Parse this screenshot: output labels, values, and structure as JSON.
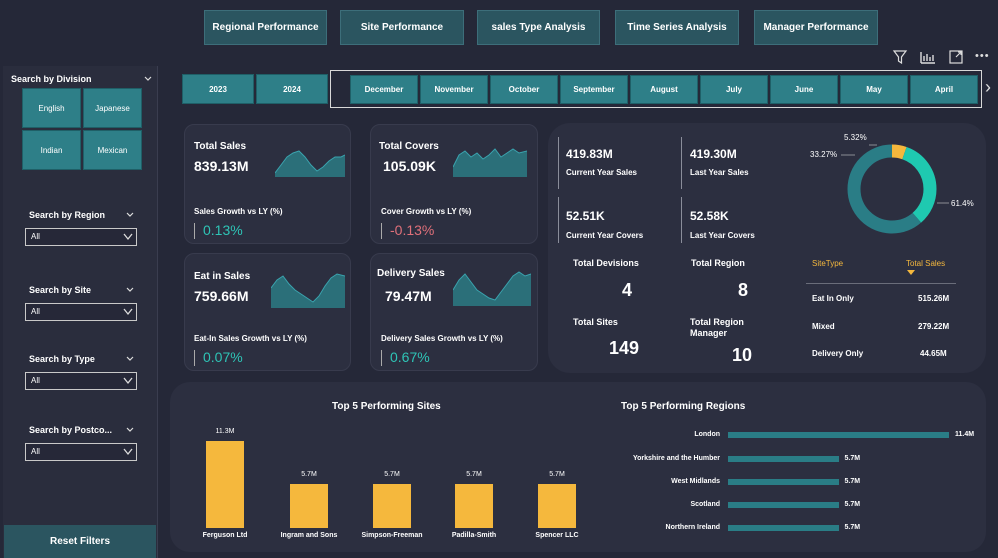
{
  "nav": {
    "items": [
      "Regional Performance",
      "Site Performance",
      "sales Type Analysis",
      "Time Series Analysis",
      "Manager Performance"
    ]
  },
  "toolbar": {
    "icons": [
      "filter-icon",
      "chart-icon",
      "expand-icon",
      "more-icon"
    ],
    "more_label": "•••"
  },
  "sidebar": {
    "division_title": "Search by Division",
    "divisions": [
      "English",
      "Japanese",
      "Indian",
      "Mexican"
    ],
    "filters": [
      {
        "title": "Search by Region",
        "value": "All"
      },
      {
        "title": "Search by Site",
        "value": "All"
      },
      {
        "title": "Search by Type",
        "value": "All"
      },
      {
        "title": "Search by Postco...",
        "value": "All"
      }
    ],
    "reset_label": "Reset Filters"
  },
  "years": [
    "2023",
    "2024"
  ],
  "months": [
    "December",
    "November",
    "October",
    "September",
    "August",
    "July",
    "June",
    "May",
    "April"
  ],
  "month_arrow": "›",
  "kpis": [
    {
      "title": "Total Sales",
      "value": "839.13M",
      "sub": "Sales Growth vs LY (%)",
      "pct": "0.13%",
      "pct_color": "#2ec4b6"
    },
    {
      "title": "Total Covers",
      "value": "105.09K",
      "sub": "Cover Growth vs LY (%)",
      "pct": "-0.13%",
      "pct_color": "#e0707a"
    },
    {
      "title": "Eat in Sales",
      "value": "759.66M",
      "sub": "Eat-In Sales Growth vs LY (%)",
      "pct": "0.07%",
      "pct_color": "#2ec4b6"
    },
    {
      "title": "Delivery Sales",
      "value": "79.47M",
      "sub": "Delivery Sales Growth vs LY (%)",
      "pct": "0.67%",
      "pct_color": "#2ec4b6"
    }
  ],
  "summary": {
    "cy_sales": "419.83M",
    "cy_sales_lbl": "Current Year Sales",
    "ly_sales": "419.30M",
    "ly_sales_lbl": "Last Year Sales",
    "cy_covers": "52.51K",
    "cy_covers_lbl": "Current Year Covers",
    "ly_covers": "52.58K",
    "ly_covers_lbl": "Last Year Covers",
    "divisions_lbl": "Total Devisions",
    "divisions": "4",
    "region_lbl": "Total Region",
    "region": "8",
    "sites_lbl": "Total Sites",
    "sites": "149",
    "managers_lbl": "Total Region Manager",
    "managers": "10"
  },
  "sitetype_table": {
    "headers": [
      "SiteType",
      "Total Sales"
    ],
    "rows": [
      [
        "Eat In Only",
        "515.26M"
      ],
      [
        "Mixed",
        "279.22M"
      ],
      [
        "Delivery Only",
        "44.65M"
      ]
    ]
  },
  "donut": {
    "labels": [
      "5.32%",
      "33.27%",
      "61.4%"
    ],
    "colors": [
      "#f5b83d",
      "#1fc9b0",
      "#2a7d86"
    ]
  },
  "top_sites_title": "Top 5 Performing Sites",
  "top_regions_title": "Top 5 Performing Regions",
  "chart_data": [
    {
      "type": "pie",
      "categories": [
        "Delivery Only",
        "Mixed",
        "Eat In Only"
      ],
      "values": [
        5.32,
        33.27,
        61.4
      ]
    },
    {
      "type": "bar",
      "title": "Top 5 Performing Sites",
      "categories": [
        "Ferguson Ltd",
        "Ingram and Sons",
        "Simpson-Freeman",
        "Padilla-Smith",
        "Spencer LLC"
      ],
      "values": [
        11.3,
        5.7,
        5.7,
        5.7,
        5.7
      ],
      "labels": [
        "11.3M",
        "5.7M",
        "5.7M",
        "5.7M",
        "5.7M"
      ]
    },
    {
      "type": "bar",
      "title": "Top 5 Performing Regions",
      "categories": [
        "London",
        "Yorkshire and the Humber",
        "West Midlands",
        "Scotland",
        "Northern Ireland"
      ],
      "values": [
        11.4,
        5.7,
        5.7,
        5.7,
        5.7
      ],
      "labels": [
        "11.4M",
        "5.7M",
        "5.7M",
        "5.7M",
        "5.7M"
      ]
    }
  ]
}
